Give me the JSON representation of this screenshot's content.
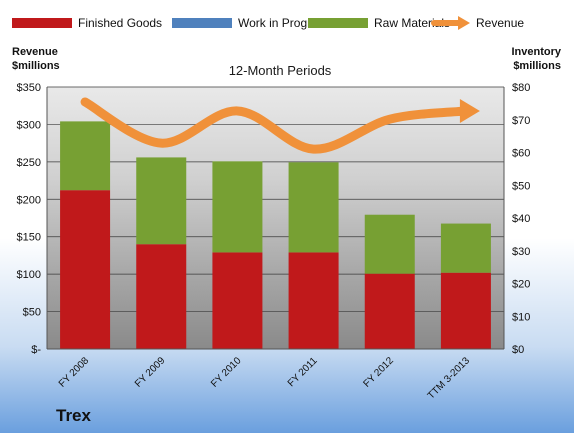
{
  "chart_data": {
    "type": "bar",
    "title": "12-Month Periods",
    "company": "Trex",
    "left_axis": {
      "label_lines": [
        "Revenue",
        "$millions"
      ],
      "ticks": [
        "$-",
        "$50",
        "$100",
        "$150",
        "$200",
        "$250",
        "$300",
        "$350"
      ],
      "ylim": [
        0,
        350
      ]
    },
    "right_axis": {
      "label_lines": [
        "Inventory",
        "$millions"
      ],
      "ticks": [
        "$0",
        "$10",
        "$20",
        "$30",
        "$40",
        "$50",
        "$60",
        "$70",
        "$80"
      ],
      "ylim": [
        0,
        80
      ]
    },
    "categories": [
      "FY 2008",
      "FY 2009",
      "FY 2010",
      "FY 2011",
      "FY 2012",
      "TTM 3-2013"
    ],
    "series": [
      {
        "name": "Finished Goods",
        "type": "stacked-bar",
        "axis": "right",
        "color": "#c0191b",
        "values": [
          48.5,
          32,
          29.5,
          29.5,
          23,
          23.3
        ]
      },
      {
        "name": "Work in Progress",
        "type": "stacked-bar",
        "axis": "right",
        "color": "#4f81bd",
        "values": [
          0,
          0,
          0,
          0,
          0,
          0
        ]
      },
      {
        "name": "Raw Materials",
        "type": "stacked-bar",
        "axis": "right",
        "color": "#77a033",
        "values": [
          21,
          26.5,
          27.8,
          27.5,
          18,
          15
        ]
      },
      {
        "name": "Revenue",
        "type": "line",
        "axis": "left",
        "color": "#f0913a",
        "values": [
          330,
          275,
          318,
          267,
          307,
          318
        ]
      }
    ],
    "legend_position": "top",
    "grid": true
  }
}
